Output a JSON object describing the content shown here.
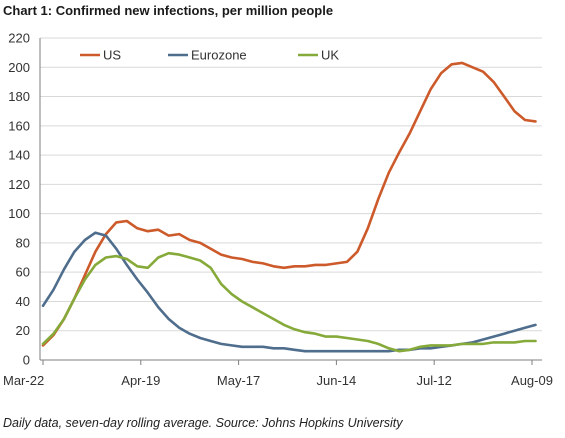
{
  "chart_data": {
    "type": "line",
    "title": "Chart 1: Confirmed new infections, per million people",
    "source": "Daily data, seven-day rolling average. Source: Johns Hopkins University",
    "x_ticks": [
      "Mar-22",
      "Apr-19",
      "May-17",
      "Jun-14",
      "Jul-12",
      "Aug-09"
    ],
    "ylim": [
      0,
      220
    ],
    "y_ticks": [
      0,
      20,
      40,
      60,
      80,
      100,
      120,
      140,
      160,
      180,
      200,
      220
    ],
    "grid": "horizontal",
    "legend_placement": "top-left",
    "series": [
      {
        "name": "US",
        "color": "#cc5a2a",
        "points": [
          [
            "Mar-22",
            10
          ],
          [
            "Mar-25",
            17
          ],
          [
            "Mar-28",
            28
          ],
          [
            "Mar-31",
            42
          ],
          [
            "Apr-03",
            58
          ],
          [
            "Apr-06",
            74
          ],
          [
            "Apr-09",
            86
          ],
          [
            "Apr-12",
            94
          ],
          [
            "Apr-15",
            95
          ],
          [
            "Apr-18",
            90
          ],
          [
            "Apr-21",
            88
          ],
          [
            "Apr-24",
            89
          ],
          [
            "Apr-27",
            85
          ],
          [
            "Apr-30",
            86
          ],
          [
            "May-03",
            82
          ],
          [
            "May-06",
            80
          ],
          [
            "May-09",
            76
          ],
          [
            "May-12",
            72
          ],
          [
            "May-15",
            70
          ],
          [
            "May-18",
            69
          ],
          [
            "May-21",
            67
          ],
          [
            "May-24",
            66
          ],
          [
            "May-27",
            64
          ],
          [
            "May-30",
            63
          ],
          [
            "Jun-02",
            64
          ],
          [
            "Jun-05",
            64
          ],
          [
            "Jun-08",
            65
          ],
          [
            "Jun-11",
            65
          ],
          [
            "Jun-14",
            66
          ],
          [
            "Jun-17",
            67
          ],
          [
            "Jun-20",
            74
          ],
          [
            "Jun-23",
            90
          ],
          [
            "Jun-26",
            110
          ],
          [
            "Jun-29",
            128
          ],
          [
            "Jul-02",
            142
          ],
          [
            "Jul-05",
            155
          ],
          [
            "Jul-08",
            170
          ],
          [
            "Jul-11",
            185
          ],
          [
            "Jul-14",
            196
          ],
          [
            "Jul-17",
            202
          ],
          [
            "Jul-20",
            203
          ],
          [
            "Jul-23",
            200
          ],
          [
            "Jul-26",
            197
          ],
          [
            "Jul-29",
            190
          ],
          [
            "Aug-01",
            180
          ],
          [
            "Aug-04",
            170
          ],
          [
            "Aug-07",
            164
          ],
          [
            "Aug-10",
            163
          ]
        ]
      },
      {
        "name": "Eurozone",
        "color": "#4f6d8c",
        "points": [
          [
            "Mar-22",
            37
          ],
          [
            "Mar-25",
            48
          ],
          [
            "Mar-28",
            62
          ],
          [
            "Mar-31",
            74
          ],
          [
            "Apr-03",
            82
          ],
          [
            "Apr-06",
            87
          ],
          [
            "Apr-09",
            85
          ],
          [
            "Apr-12",
            76
          ],
          [
            "Apr-15",
            65
          ],
          [
            "Apr-18",
            55
          ],
          [
            "Apr-21",
            46
          ],
          [
            "Apr-24",
            36
          ],
          [
            "Apr-27",
            28
          ],
          [
            "Apr-30",
            22
          ],
          [
            "May-03",
            18
          ],
          [
            "May-06",
            15
          ],
          [
            "May-09",
            13
          ],
          [
            "May-12",
            11
          ],
          [
            "May-15",
            10
          ],
          [
            "May-18",
            9
          ],
          [
            "May-21",
            9
          ],
          [
            "May-24",
            9
          ],
          [
            "May-27",
            8
          ],
          [
            "May-30",
            8
          ],
          [
            "Jun-02",
            7
          ],
          [
            "Jun-05",
            6
          ],
          [
            "Jun-08",
            6
          ],
          [
            "Jun-11",
            6
          ],
          [
            "Jun-14",
            6
          ],
          [
            "Jun-17",
            6
          ],
          [
            "Jun-20",
            6
          ],
          [
            "Jun-23",
            6
          ],
          [
            "Jun-26",
            6
          ],
          [
            "Jun-29",
            6
          ],
          [
            "Jul-02",
            7
          ],
          [
            "Jul-05",
            7
          ],
          [
            "Jul-08",
            8
          ],
          [
            "Jul-11",
            8
          ],
          [
            "Jul-14",
            9
          ],
          [
            "Jul-17",
            10
          ],
          [
            "Jul-20",
            11
          ],
          [
            "Jul-23",
            12
          ],
          [
            "Jul-26",
            14
          ],
          [
            "Jul-29",
            16
          ],
          [
            "Aug-01",
            18
          ],
          [
            "Aug-04",
            20
          ],
          [
            "Aug-07",
            22
          ],
          [
            "Aug-10",
            24
          ]
        ]
      },
      {
        "name": "UK",
        "color": "#86aa3a",
        "points": [
          [
            "Mar-22",
            11
          ],
          [
            "Mar-25",
            18
          ],
          [
            "Mar-28",
            28
          ],
          [
            "Mar-31",
            42
          ],
          [
            "Apr-03",
            55
          ],
          [
            "Apr-06",
            65
          ],
          [
            "Apr-09",
            70
          ],
          [
            "Apr-12",
            71
          ],
          [
            "Apr-15",
            69
          ],
          [
            "Apr-18",
            64
          ],
          [
            "Apr-21",
            63
          ],
          [
            "Apr-24",
            70
          ],
          [
            "Apr-27",
            73
          ],
          [
            "Apr-30",
            72
          ],
          [
            "May-03",
            70
          ],
          [
            "May-06",
            68
          ],
          [
            "May-09",
            63
          ],
          [
            "May-12",
            52
          ],
          [
            "May-15",
            45
          ],
          [
            "May-18",
            40
          ],
          [
            "May-21",
            36
          ],
          [
            "May-24",
            32
          ],
          [
            "May-27",
            28
          ],
          [
            "May-30",
            24
          ],
          [
            "Jun-02",
            21
          ],
          [
            "Jun-05",
            19
          ],
          [
            "Jun-08",
            18
          ],
          [
            "Jun-11",
            16
          ],
          [
            "Jun-14",
            16
          ],
          [
            "Jun-17",
            15
          ],
          [
            "Jun-20",
            14
          ],
          [
            "Jun-23",
            13
          ],
          [
            "Jun-26",
            11
          ],
          [
            "Jun-29",
            8
          ],
          [
            "Jul-02",
            6
          ],
          [
            "Jul-05",
            7
          ],
          [
            "Jul-08",
            9
          ],
          [
            "Jul-11",
            10
          ],
          [
            "Jul-14",
            10
          ],
          [
            "Jul-17",
            10
          ],
          [
            "Jul-20",
            11
          ],
          [
            "Jul-23",
            11
          ],
          [
            "Jul-26",
            11
          ],
          [
            "Jul-29",
            12
          ],
          [
            "Aug-01",
            12
          ],
          [
            "Aug-04",
            12
          ],
          [
            "Aug-07",
            13
          ],
          [
            "Aug-10",
            13
          ]
        ]
      }
    ]
  }
}
